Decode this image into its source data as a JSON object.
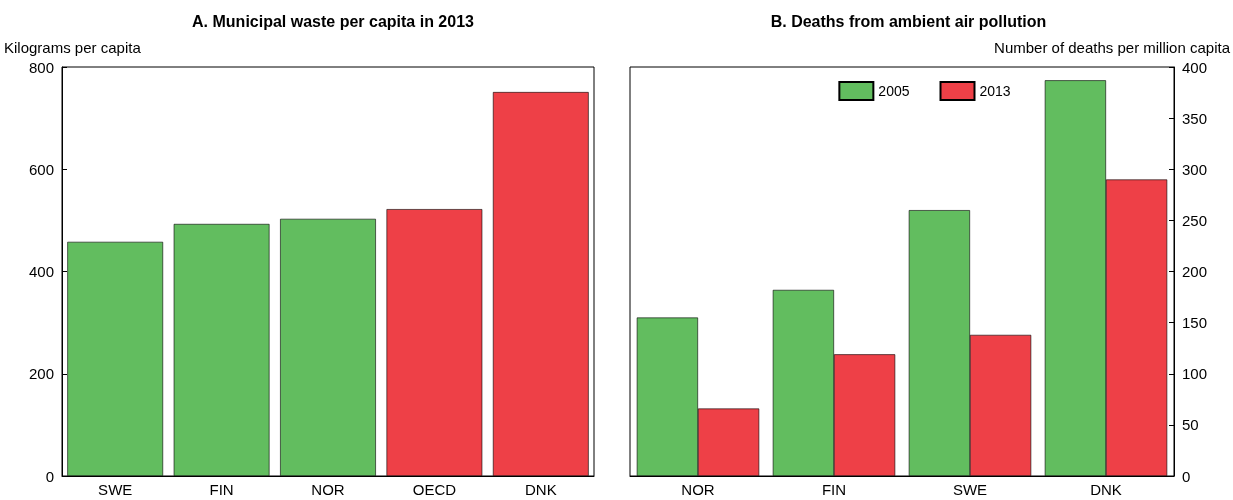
{
  "chart_data": [
    {
      "type": "bar",
      "title": "A. Municipal waste per capita in 2013",
      "ylabel": "Kilograms per capita",
      "categories": [
        "SWE",
        "FIN",
        "NOR",
        "OECD",
        "DNK"
      ],
      "values": [
        458,
        493,
        503,
        522,
        751
      ],
      "colors": [
        "#62bd5f",
        "#62bd5f",
        "#62bd5f",
        "#ee4047",
        "#ee4047"
      ],
      "ylim": [
        0,
        800
      ],
      "yticks": [
        0,
        200,
        400,
        600,
        800
      ],
      "grid": false,
      "legend": false
    },
    {
      "type": "bar",
      "title": "B. Deaths from ambient air pollution",
      "y2label": "Number of deaths per million capita",
      "categories": [
        "NOR",
        "FIN",
        "SWE",
        "DNK"
      ],
      "series": [
        {
          "name": "2005",
          "color": "#62bd5f",
          "axis": "y2",
          "values": [
            155,
            182,
            260,
            387
          ]
        },
        {
          "name": "2013",
          "color": "#ee4047",
          "axis": "y2",
          "values": [
            66,
            119,
            138,
            290
          ]
        }
      ],
      "y2lim": [
        0,
        400
      ],
      "y2ticks": [
        0,
        50,
        100,
        150,
        200,
        250,
        300,
        350,
        400
      ],
      "grid": false,
      "legend": "top"
    }
  ]
}
